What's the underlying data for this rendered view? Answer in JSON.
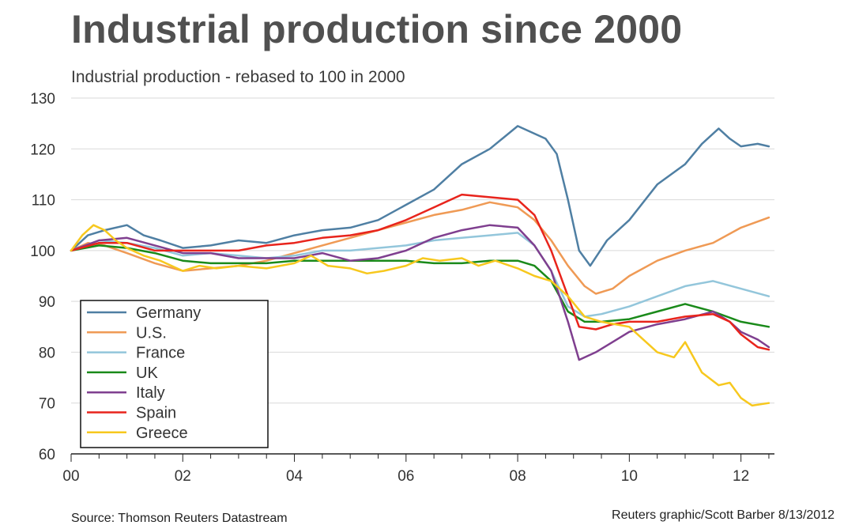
{
  "title": "Industrial production since 2000",
  "subtitle": "Industrial production - rebased to 100 in 2000",
  "source": "Source: Thomson Reuters Datastream",
  "credit": "Reuters graphic/Scott Barber 8/13/2012",
  "chart_data": {
    "type": "line",
    "title": "Industrial production since 2000",
    "subtitle": "Industrial production - rebased to 100 in 2000",
    "xlabel": "",
    "ylabel": "",
    "xlim": [
      2000,
      2012.6
    ],
    "ylim": [
      60,
      130
    ],
    "x_ticks": [
      {
        "value": 2000,
        "label": "00"
      },
      {
        "value": 2002,
        "label": "02"
      },
      {
        "value": 2004,
        "label": "04"
      },
      {
        "value": 2006,
        "label": "06"
      },
      {
        "value": 2008,
        "label": "08"
      },
      {
        "value": 2010,
        "label": "10"
      },
      {
        "value": 2012,
        "label": "12"
      }
    ],
    "y_ticks": [
      60,
      70,
      80,
      90,
      100,
      110,
      120,
      130
    ],
    "grid": "horizontal",
    "legend_position": "bottom-left",
    "series": [
      {
        "name": "Germany",
        "color": "#4f7fa3",
        "points": [
          [
            2000,
            100
          ],
          [
            2000.3,
            103
          ],
          [
            2000.6,
            104
          ],
          [
            2001,
            105
          ],
          [
            2001.3,
            103
          ],
          [
            2001.6,
            102
          ],
          [
            2002,
            100.5
          ],
          [
            2002.5,
            101
          ],
          [
            2003,
            102
          ],
          [
            2003.5,
            101.5
          ],
          [
            2004,
            103
          ],
          [
            2004.5,
            104
          ],
          [
            2005,
            104.5
          ],
          [
            2005.5,
            106
          ],
          [
            2006,
            109
          ],
          [
            2006.5,
            112
          ],
          [
            2007,
            117
          ],
          [
            2007.5,
            120
          ],
          [
            2008,
            124.5
          ],
          [
            2008.3,
            123
          ],
          [
            2008.5,
            122
          ],
          [
            2008.7,
            119
          ],
          [
            2008.9,
            110
          ],
          [
            2009.1,
            100
          ],
          [
            2009.3,
            97
          ],
          [
            2009.6,
            102
          ],
          [
            2010,
            106
          ],
          [
            2010.5,
            113
          ],
          [
            2011,
            117
          ],
          [
            2011.3,
            121
          ],
          [
            2011.6,
            124
          ],
          [
            2011.8,
            122
          ],
          [
            2012,
            120.5
          ],
          [
            2012.3,
            121
          ],
          [
            2012.5,
            120.5
          ]
        ]
      },
      {
        "name": "U.S.",
        "color": "#ef9a55",
        "points": [
          [
            2000,
            100
          ],
          [
            2000.3,
            101.5
          ],
          [
            2000.6,
            101
          ],
          [
            2001,
            99.5
          ],
          [
            2001.5,
            97.5
          ],
          [
            2002,
            96
          ],
          [
            2002.5,
            96.5
          ],
          [
            2003,
            97
          ],
          [
            2003.5,
            98
          ],
          [
            2004,
            99.5
          ],
          [
            2004.5,
            101
          ],
          [
            2005,
            102.5
          ],
          [
            2005.5,
            104
          ],
          [
            2006,
            105.5
          ],
          [
            2006.5,
            107
          ],
          [
            2007,
            108
          ],
          [
            2007.5,
            109.5
          ],
          [
            2008,
            108.5
          ],
          [
            2008.3,
            106
          ],
          [
            2008.6,
            102
          ],
          [
            2008.9,
            97
          ],
          [
            2009.2,
            93
          ],
          [
            2009.4,
            91.5
          ],
          [
            2009.7,
            92.5
          ],
          [
            2010,
            95
          ],
          [
            2010.5,
            98
          ],
          [
            2011,
            100
          ],
          [
            2011.5,
            101.5
          ],
          [
            2012,
            104.5
          ],
          [
            2012.5,
            106.5
          ]
        ]
      },
      {
        "name": "France",
        "color": "#93c6db",
        "points": [
          [
            2000,
            100
          ],
          [
            2000.5,
            102
          ],
          [
            2001,
            101.5
          ],
          [
            2001.5,
            100.5
          ],
          [
            2002,
            99
          ],
          [
            2002.5,
            99.5
          ],
          [
            2003,
            99
          ],
          [
            2003.5,
            98.5
          ],
          [
            2004,
            99
          ],
          [
            2004.5,
            100
          ],
          [
            2005,
            100
          ],
          [
            2005.5,
            100.5
          ],
          [
            2006,
            101
          ],
          [
            2006.5,
            102
          ],
          [
            2007,
            102.5
          ],
          [
            2007.5,
            103
          ],
          [
            2008,
            103.5
          ],
          [
            2008.3,
            101
          ],
          [
            2008.6,
            96
          ],
          [
            2008.9,
            89
          ],
          [
            2009.2,
            87
          ],
          [
            2009.5,
            87.5
          ],
          [
            2010,
            89
          ],
          [
            2010.5,
            91
          ],
          [
            2011,
            93
          ],
          [
            2011.5,
            94
          ],
          [
            2012,
            92.5
          ],
          [
            2012.5,
            91
          ]
        ]
      },
      {
        "name": "UK",
        "color": "#1a8a1a",
        "points": [
          [
            2000,
            100
          ],
          [
            2000.5,
            101
          ],
          [
            2001,
            100.5
          ],
          [
            2001.5,
            99.5
          ],
          [
            2002,
            98
          ],
          [
            2002.5,
            97.5
          ],
          [
            2003,
            97.5
          ],
          [
            2003.5,
            97.5
          ],
          [
            2004,
            98
          ],
          [
            2004.5,
            98
          ],
          [
            2005,
            98
          ],
          [
            2005.5,
            98
          ],
          [
            2006,
            98
          ],
          [
            2006.5,
            97.5
          ],
          [
            2007,
            97.5
          ],
          [
            2007.5,
            98
          ],
          [
            2008,
            98
          ],
          [
            2008.3,
            97
          ],
          [
            2008.6,
            94
          ],
          [
            2008.9,
            88
          ],
          [
            2009.2,
            86
          ],
          [
            2009.5,
            86
          ],
          [
            2010,
            86.5
          ],
          [
            2010.5,
            88
          ],
          [
            2011,
            89.5
          ],
          [
            2011.5,
            88
          ],
          [
            2012,
            86
          ],
          [
            2012.5,
            85
          ]
        ]
      },
      {
        "name": "Italy",
        "color": "#7f3f8f",
        "points": [
          [
            2000,
            100
          ],
          [
            2000.5,
            102
          ],
          [
            2001,
            102.5
          ],
          [
            2001.5,
            101
          ],
          [
            2002,
            99.5
          ],
          [
            2002.5,
            99.5
          ],
          [
            2003,
            98.5
          ],
          [
            2003.5,
            98.5
          ],
          [
            2004,
            98.5
          ],
          [
            2004.5,
            99.5
          ],
          [
            2005,
            98
          ],
          [
            2005.5,
            98.5
          ],
          [
            2006,
            100
          ],
          [
            2006.5,
            102.5
          ],
          [
            2007,
            104
          ],
          [
            2007.5,
            105
          ],
          [
            2008,
            104.5
          ],
          [
            2008.3,
            101
          ],
          [
            2008.6,
            96
          ],
          [
            2008.9,
            86
          ],
          [
            2009.1,
            78.5
          ],
          [
            2009.4,
            80
          ],
          [
            2009.7,
            82
          ],
          [
            2010,
            84
          ],
          [
            2010.5,
            85.5
          ],
          [
            2011,
            86.5
          ],
          [
            2011.5,
            88
          ],
          [
            2011.8,
            86
          ],
          [
            2012,
            84
          ],
          [
            2012.3,
            82.5
          ],
          [
            2012.5,
            81
          ]
        ]
      },
      {
        "name": "Spain",
        "color": "#e8241c",
        "points": [
          [
            2000,
            100
          ],
          [
            2000.5,
            101.5
          ],
          [
            2001,
            101.5
          ],
          [
            2001.5,
            100
          ],
          [
            2002,
            100
          ],
          [
            2002.5,
            100
          ],
          [
            2003,
            100
          ],
          [
            2003.5,
            101
          ],
          [
            2004,
            101.5
          ],
          [
            2004.5,
            102.5
          ],
          [
            2005,
            103
          ],
          [
            2005.5,
            104
          ],
          [
            2006,
            106
          ],
          [
            2006.5,
            108.5
          ],
          [
            2007,
            111
          ],
          [
            2007.5,
            110.5
          ],
          [
            2008,
            110
          ],
          [
            2008.3,
            107
          ],
          [
            2008.6,
            100
          ],
          [
            2008.9,
            91
          ],
          [
            2009.1,
            85
          ],
          [
            2009.4,
            84.5
          ],
          [
            2009.7,
            85.5
          ],
          [
            2010,
            86
          ],
          [
            2010.5,
            86
          ],
          [
            2011,
            87
          ],
          [
            2011.5,
            87.5
          ],
          [
            2011.8,
            86
          ],
          [
            2012,
            83.5
          ],
          [
            2012.3,
            81
          ],
          [
            2012.5,
            80.5
          ]
        ]
      },
      {
        "name": "Greece",
        "color": "#f7c81e",
        "points": [
          [
            2000,
            100
          ],
          [
            2000.2,
            103
          ],
          [
            2000.4,
            105
          ],
          [
            2000.6,
            104
          ],
          [
            2000.8,
            102
          ],
          [
            2001,
            100.5
          ],
          [
            2001.3,
            99
          ],
          [
            2001.6,
            98
          ],
          [
            2002,
            96
          ],
          [
            2002.3,
            97
          ],
          [
            2002.6,
            96.5
          ],
          [
            2003,
            97
          ],
          [
            2003.5,
            96.5
          ],
          [
            2004,
            97.5
          ],
          [
            2004.3,
            99
          ],
          [
            2004.6,
            97
          ],
          [
            2005,
            96.5
          ],
          [
            2005.3,
            95.5
          ],
          [
            2005.6,
            96
          ],
          [
            2006,
            97
          ],
          [
            2006.3,
            98.5
          ],
          [
            2006.6,
            98
          ],
          [
            2007,
            98.5
          ],
          [
            2007.3,
            97
          ],
          [
            2007.6,
            98
          ],
          [
            2008,
            96.5
          ],
          [
            2008.3,
            95
          ],
          [
            2008.6,
            94
          ],
          [
            2008.9,
            91
          ],
          [
            2009.2,
            87
          ],
          [
            2009.5,
            86
          ],
          [
            2010,
            85
          ],
          [
            2010.3,
            82
          ],
          [
            2010.5,
            80
          ],
          [
            2010.8,
            79
          ],
          [
            2011,
            82
          ],
          [
            2011.3,
            76
          ],
          [
            2011.6,
            73.5
          ],
          [
            2011.8,
            74
          ],
          [
            2012,
            71
          ],
          [
            2012.2,
            69.5
          ],
          [
            2012.5,
            70
          ]
        ]
      }
    ]
  }
}
